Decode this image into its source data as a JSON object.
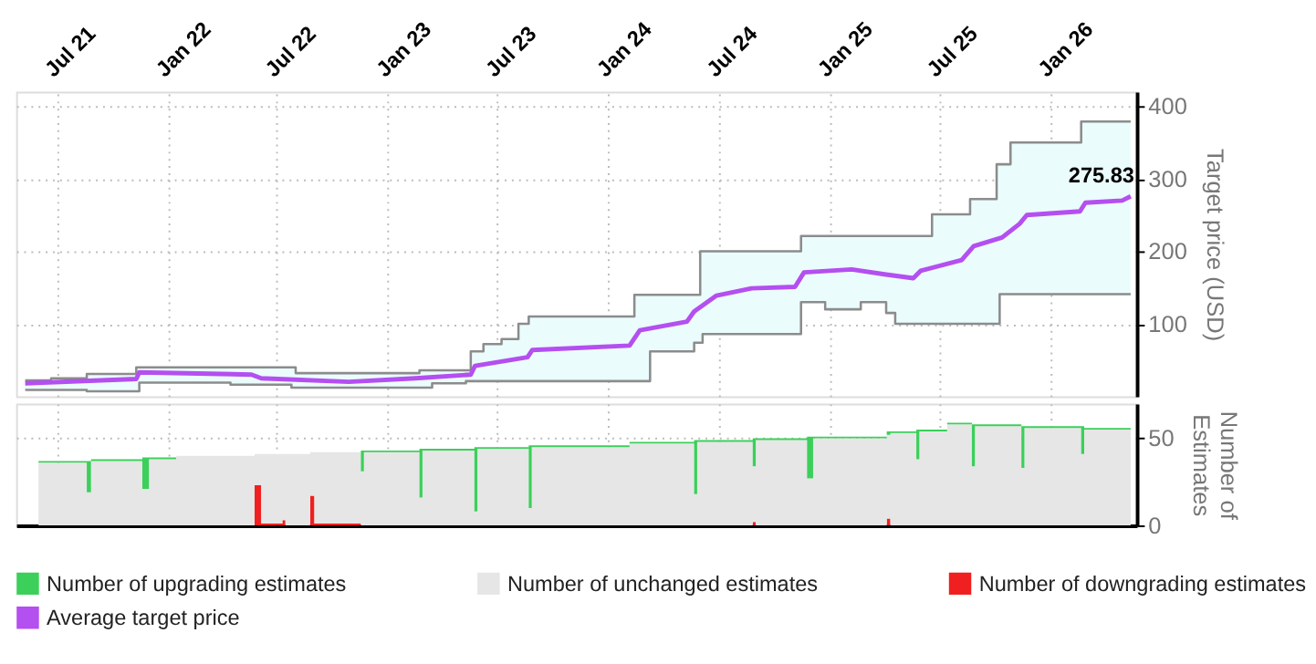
{
  "chart_data": [
    {
      "type": "line",
      "ylabel": "Target price (USD)",
      "xlim": [
        "2021-04-25",
        "2026-05-25"
      ],
      "xticks": [
        {
          "value": "2021-07-01",
          "label": "Jul 21"
        },
        {
          "value": "2022-01-01",
          "label": "Jan 22"
        },
        {
          "value": "2022-07-01",
          "label": "Jul 22"
        },
        {
          "value": "2023-01-01",
          "label": "Jan 23"
        },
        {
          "value": "2023-07-01",
          "label": "Jul 23"
        },
        {
          "value": "2024-01-01",
          "label": "Jan 24"
        },
        {
          "value": "2024-07-01",
          "label": "Jul 24"
        },
        {
          "value": "2025-01-01",
          "label": "Jan 25"
        },
        {
          "value": "2025-07-01",
          "label": "Jul 25"
        },
        {
          "value": "2026-01-01",
          "label": "Jan 26"
        }
      ],
      "ylim": [
        0,
        420
      ],
      "yticks": [
        100,
        200,
        300,
        400
      ],
      "grid": true,
      "marker": "none",
      "line_style": "solid",
      "annotations": [
        {
          "text": "275.83",
          "x": "2026-05-15",
          "y": 275.83
        }
      ],
      "series": [
        {
          "type": "step",
          "color": "#8c8c8c",
          "x": [
            "2021-05-10",
            "2021-06-22",
            "2021-08-20",
            "2021-11-10",
            "2021-11-15",
            "2022-04-15",
            "2022-07-25",
            "2022-08-01",
            "2023-02-22",
            "2023-03-15",
            "2023-05-10",
            "2023-05-18",
            "2023-06-08",
            "2023-07-08",
            "2023-08-05",
            "2023-08-22",
            "2024-02-13",
            "2024-03-10",
            "2024-05-22",
            "2024-06-01",
            "2024-06-05",
            "2024-11-15",
            "2024-12-25",
            "2025-02-22",
            "2025-04-05",
            "2025-04-20",
            "2025-06-20",
            "2025-08-22",
            "2025-10-05",
            "2025-10-10",
            "2025-10-28",
            "2026-02-22",
            "2026-05-15"
          ],
          "values": [
            22,
            25,
            31,
            40,
            40,
            40,
            40,
            32,
            36,
            36,
            36,
            62,
            72,
            79,
            100,
            110,
            140,
            140,
            140,
            200,
            200,
            221,
            221,
            221,
            221,
            221,
            251,
            272,
            320,
            320,
            350,
            379,
            379
          ],
          "lower": [
            9,
            9,
            7,
            7,
            19,
            16,
            12,
            12,
            12,
            18,
            21,
            21,
            21,
            21,
            21,
            21,
            21,
            62,
            74,
            74,
            86,
            130,
            120,
            130,
            115,
            100,
            100,
            100,
            100,
            141,
            141,
            141,
            141
          ],
          "upper": [
            22,
            25,
            31,
            40,
            40,
            40,
            40,
            32,
            36,
            36,
            36,
            62,
            72,
            79,
            100,
            110,
            140,
            140,
            140,
            200,
            200,
            221,
            221,
            221,
            221,
            221,
            251,
            272,
            320,
            320,
            350,
            379,
            379
          ]
        },
        {
          "type": "step",
          "color": "#8c8c8c",
          "x": [
            "2021-05-10",
            "2021-06-22",
            "2021-08-20",
            "2021-11-10",
            "2021-11-15",
            "2022-04-15",
            "2022-07-25",
            "2022-08-01",
            "2023-02-22",
            "2023-03-15",
            "2023-05-10",
            "2023-05-18",
            "2023-06-08",
            "2023-07-08",
            "2023-08-05",
            "2023-08-22",
            "2024-02-13",
            "2024-03-10",
            "2024-05-22",
            "2024-06-01",
            "2024-06-05",
            "2024-11-15",
            "2024-12-25",
            "2025-02-22",
            "2025-04-05",
            "2025-04-20",
            "2025-06-20",
            "2025-08-22",
            "2025-10-05",
            "2025-10-10",
            "2025-10-28",
            "2026-02-22",
            "2026-05-15"
          ],
          "values": [
            9,
            9,
            7,
            7,
            19,
            16,
            12,
            12,
            12,
            18,
            21,
            21,
            21,
            21,
            21,
            21,
            21,
            62,
            74,
            74,
            86,
            130,
            120,
            130,
            115,
            100,
            100,
            100,
            100,
            141,
            141,
            141,
            141
          ]
        },
        {
          "type": "line",
          "name": "Average target price",
          "color": "#b44ff0",
          "x": [
            "2021-05-10",
            "2021-11-10",
            "2021-11-15",
            "2022-05-20",
            "2022-06-05",
            "2022-10-28",
            "2023-02-15",
            "2023-05-18",
            "2023-05-25",
            "2023-08-20",
            "2023-08-28",
            "2024-02-05",
            "2024-02-22",
            "2024-05-10",
            "2024-05-22",
            "2024-06-28",
            "2024-08-25",
            "2024-11-05",
            "2024-11-20",
            "2025-02-07",
            "2025-04-05",
            "2025-05-20",
            "2025-06-01",
            "2025-08-08",
            "2025-08-28",
            "2025-10-14",
            "2025-11-12",
            "2025-11-24",
            "2026-02-20",
            "2026-03-01",
            "2026-05-01",
            "2026-05-15"
          ],
          "values": [
            18,
            24,
            33,
            30,
            25,
            20,
            25,
            30,
            42,
            54,
            64,
            70,
            91,
            103,
            117,
            139,
            149,
            151,
            171,
            175,
            168,
            163,
            173,
            188,
            207,
            219,
            238,
            250,
            255,
            267,
            270,
            275.83
          ]
        }
      ]
    },
    {
      "type": "area",
      "stacked": true,
      "ylabel": "Number of Estimates",
      "xlim": [
        "2021-04-25",
        "2026-05-25"
      ],
      "ylim": [
        0,
        70
      ],
      "yticks": [
        0,
        50
      ],
      "grid": true,
      "tick_labels": "y",
      "legend": "bottom",
      "x": [
        "2021-06-01",
        "2021-08-20",
        "2021-08-27",
        "2021-11-20",
        "2021-12-01",
        "2022-01-15",
        "2022-05-25",
        "2022-06-05",
        "2022-07-10",
        "2022-07-15",
        "2022-08-25",
        "2022-09-01",
        "2022-11-17",
        "2022-11-22",
        "2023-02-22",
        "2023-02-27",
        "2023-05-24",
        "2023-05-29",
        "2023-08-22",
        "2023-08-27",
        "2024-02-05",
        "2024-05-22",
        "2024-05-27",
        "2024-08-27",
        "2024-09-01",
        "2024-11-25",
        "2024-12-05",
        "2025-04-06",
        "2025-04-12",
        "2025-05-25",
        "2025-05-30",
        "2025-07-15",
        "2025-08-25",
        "2025-08-30",
        "2025-11-15",
        "2025-11-20",
        "2026-02-22",
        "2026-02-27",
        "2026-05-15"
      ],
      "series": [
        {
          "name": "Number of downgrading estimates",
          "color": "#f02020",
          "values": [
            0,
            0,
            0,
            0,
            0,
            0,
            23,
            1,
            3,
            0,
            17,
            1,
            0,
            0,
            0,
            0,
            0,
            0,
            0,
            0,
            0,
            0,
            0,
            2,
            0,
            0,
            0,
            4,
            0,
            0,
            0,
            0,
            0,
            0,
            0,
            0,
            0,
            0,
            0
          ]
        },
        {
          "name": "Number of unchanged estimates",
          "color": "#e6e6e6",
          "values": [
            36,
            19,
            37,
            21,
            38,
            40,
            18,
            40,
            38,
            41,
            25,
            41,
            31,
            42,
            16,
            43,
            8,
            44,
            10,
            45,
            47,
            18,
            48,
            32,
            49,
            27,
            50,
            48,
            53,
            38,
            54,
            58,
            34,
            57,
            33,
            56,
            41,
            55,
            54
          ]
        },
        {
          "name": "Number of upgrading estimates",
          "color": "#3ccf5a",
          "values": [
            1,
            18,
            1,
            18,
            1,
            0,
            0,
            0,
            0,
            0,
            0,
            0,
            12,
            1,
            28,
            1,
            37,
            1,
            36,
            1,
            1,
            31,
            1,
            16,
            1,
            24,
            1,
            2,
            1,
            17,
            1,
            1,
            24,
            1,
            24,
            1,
            16,
            1,
            2
          ]
        }
      ]
    }
  ]
}
